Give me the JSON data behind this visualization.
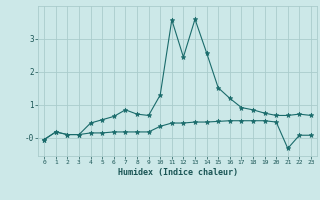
{
  "title": "",
  "xlabel": "Humidex (Indice chaleur)",
  "background_color": "#cce8e8",
  "grid_color": "#aacccc",
  "line_color": "#1a6b6b",
  "x_ticks": [
    0,
    1,
    2,
    3,
    4,
    5,
    6,
    7,
    8,
    9,
    10,
    11,
    12,
    13,
    14,
    15,
    16,
    17,
    18,
    19,
    20,
    21,
    22,
    23
  ],
  "ylim": [
    -0.55,
    4.0
  ],
  "series1_x": [
    0,
    1,
    2,
    3,
    4,
    5,
    6,
    7,
    8,
    9,
    10,
    11,
    12,
    13,
    14,
    15,
    16,
    17,
    18,
    19,
    20,
    21,
    22,
    23
  ],
  "series1_y": [
    -0.05,
    0.18,
    0.1,
    0.1,
    0.45,
    0.55,
    0.65,
    0.85,
    0.72,
    0.68,
    1.3,
    3.58,
    2.45,
    3.6,
    2.58,
    1.52,
    1.2,
    0.92,
    0.85,
    0.75,
    0.68,
    0.68,
    0.72,
    0.68
  ],
  "series2_x": [
    0,
    1,
    2,
    3,
    4,
    5,
    6,
    7,
    8,
    9,
    10,
    11,
    12,
    13,
    14,
    15,
    16,
    17,
    18,
    19,
    20,
    21,
    22,
    23
  ],
  "series2_y": [
    -0.05,
    0.18,
    0.1,
    0.1,
    0.15,
    0.15,
    0.18,
    0.18,
    0.18,
    0.18,
    0.35,
    0.45,
    0.45,
    0.48,
    0.48,
    0.5,
    0.52,
    0.52,
    0.52,
    0.52,
    0.48,
    -0.32,
    0.08,
    0.08
  ]
}
